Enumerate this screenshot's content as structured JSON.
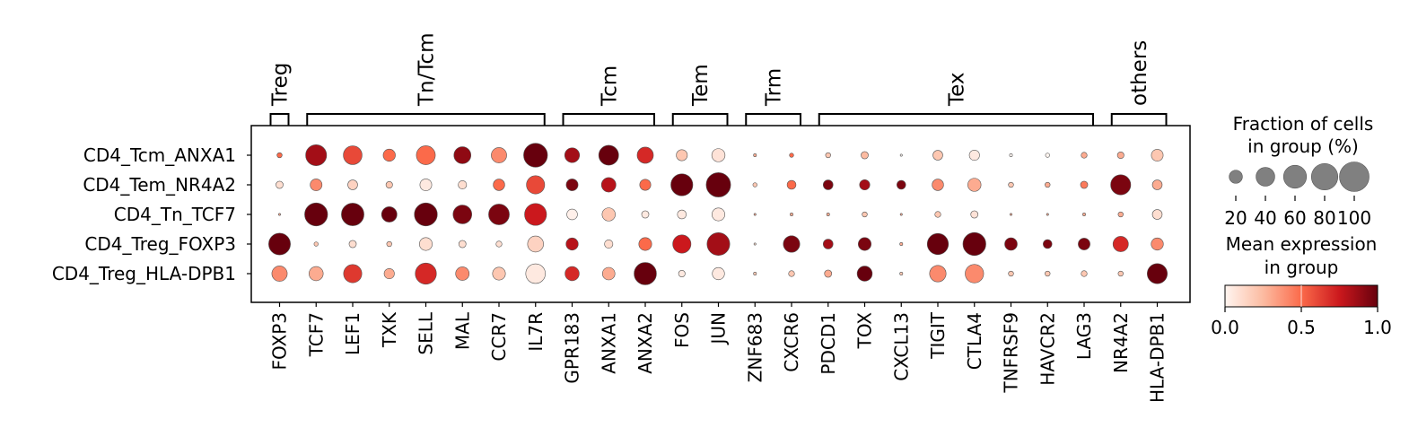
{
  "chart_data": {
    "type": "dotplot",
    "rows": [
      "CD4_Tcm_ANXA1",
      "CD4_Tem_NR4A2",
      "CD4_Tn_TCF7",
      "CD4_Treg_FOXP3",
      "CD4_Treg_HLA-DPB1"
    ],
    "genes": [
      "FOXP3",
      "TCF7",
      "LEF1",
      "TXK",
      "SELL",
      "MAL",
      "CCR7",
      "IL7R",
      "GPR183",
      "ANXA1",
      "ANXA2",
      "FOS",
      "JUN",
      "ZNF683",
      "CXCR6",
      "PDCD1",
      "TOX",
      "CXCL13",
      "TIGIT",
      "CTLA4",
      "TNFRSF9",
      "HAVCR2",
      "LAG3",
      "NR4A2",
      "HLA-DPB1"
    ],
    "groups": [
      {
        "label": "Treg",
        "start": 0,
        "end": 0
      },
      {
        "label": "Tn/Tcm",
        "start": 1,
        "end": 7
      },
      {
        "label": "Tcm",
        "start": 8,
        "end": 10
      },
      {
        "label": "Tem",
        "start": 11,
        "end": 12
      },
      {
        "label": "Trm",
        "start": 13,
        "end": 14
      },
      {
        "label": "Tex",
        "start": 15,
        "end": 22
      },
      {
        "label": "others",
        "start": 23,
        "end": 24
      }
    ],
    "fraction_pct": [
      [
        3,
        50,
        40,
        17,
        41,
        33,
        27,
        65,
        25,
        45,
        30,
        14,
        20,
        1,
        2,
        3,
        6,
        0.5,
        11,
        12,
        1,
        2,
        4,
        5,
        16
      ],
      [
        6,
        16,
        11,
        5,
        16,
        8,
        15,
        38,
        16,
        24,
        14,
        55,
        68,
        2,
        9,
        11,
        12,
        9,
        15,
        20,
        3,
        3,
        6,
        46,
        11
      ],
      [
        0.5,
        60,
        58,
        27,
        60,
        40,
        49,
        55,
        13,
        20,
        6,
        9,
        19,
        0.5,
        1,
        1,
        3,
        0.5,
        4,
        6,
        0.5,
        0.5,
        1,
        3,
        11
      ],
      [
        54,
        2,
        6,
        3,
        19,
        6,
        4,
        29,
        17,
        8,
        19,
        38,
        59,
        0.5,
        31,
        11,
        19,
        1,
        51,
        60,
        18,
        9,
        16,
        27,
        17
      ],
      [
        27,
        23,
        38,
        12,
        51,
        21,
        19,
        44,
        23,
        18,
        57,
        5,
        17,
        1,
        4,
        6,
        26,
        1,
        31,
        39,
        3,
        3,
        4,
        3,
        46
      ]
    ],
    "mean_expression": [
      [
        0.5,
        0.85,
        0.6,
        0.5,
        0.5,
        0.9,
        0.4,
        1.0,
        0.85,
        1.0,
        0.7,
        0.2,
        0.08,
        0.3,
        0.5,
        0.2,
        0.25,
        0.0,
        0.2,
        0.05,
        0.0,
        0.0,
        0.3,
        0.3,
        0.2
      ],
      [
        0.1,
        0.4,
        0.15,
        0.2,
        0.05,
        0.1,
        0.5,
        0.6,
        0.95,
        0.8,
        0.5,
        1.0,
        1.0,
        0.2,
        0.5,
        0.95,
        0.85,
        0.95,
        0.4,
        0.3,
        0.2,
        0.3,
        0.45,
        0.95,
        0.3
      ],
      [
        0.3,
        1.0,
        1.0,
        1.0,
        1.0,
        0.95,
        0.95,
        0.75,
        0.02,
        0.2,
        0.05,
        0.05,
        0.05,
        0.3,
        0.3,
        0.3,
        0.2,
        0.3,
        0.2,
        0.08,
        0.3,
        0.3,
        0.3,
        0.3,
        0.1
      ],
      [
        1.0,
        0.2,
        0.1,
        0.2,
        0.1,
        0.1,
        0.1,
        0.15,
        0.8,
        0.1,
        0.5,
        0.75,
        0.85,
        0.1,
        0.95,
        0.85,
        0.95,
        0.3,
        1.0,
        1.0,
        0.95,
        0.95,
        0.95,
        0.7,
        0.4
      ],
      [
        0.4,
        0.3,
        0.65,
        0.3,
        0.7,
        0.4,
        0.2,
        0.05,
        0.7,
        0.3,
        1.0,
        0.05,
        0.05,
        0.2,
        0.2,
        0.3,
        1.0,
        0.2,
        0.4,
        0.4,
        0.2,
        0.2,
        0.2,
        0.2,
        1.0
      ]
    ],
    "size_legend": {
      "title_lines": [
        "Fraction of cells",
        "in group (%)"
      ],
      "values": [
        20,
        40,
        60,
        80,
        100
      ],
      "tick_labels": [
        "20",
        "40",
        "60",
        "80",
        "100"
      ]
    },
    "colorbar": {
      "title_lines": [
        "Mean expression",
        "in group"
      ],
      "range": [
        0.0,
        1.0
      ],
      "tick_labels": [
        "0.0",
        "0.5",
        "1.0"
      ],
      "colormap": "Reds",
      "stops": [
        "#fff5f0",
        "#fcbba1",
        "#fb6a4a",
        "#cb181d",
        "#67000d"
      ]
    }
  }
}
